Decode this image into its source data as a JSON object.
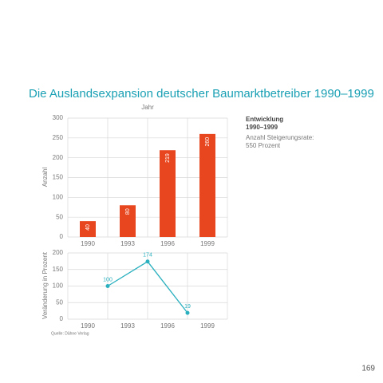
{
  "chart_data": [
    {
      "type": "bar",
      "title": "Die Auslandsexpansion deutscher Baumarktbetreiber 1990–1999",
      "x_label": "Jahr",
      "y_label": "Anzahl",
      "categories": [
        "1990",
        "1993",
        "1996",
        "1999"
      ],
      "values": [
        40,
        80,
        219,
        260
      ],
      "color": "#e8461e",
      "ylim": [
        0,
        300
      ],
      "yticks": [
        0,
        50,
        100,
        150,
        200,
        250,
        300
      ],
      "grid": true,
      "note_heading": [
        "Entwicklung",
        "1990–1999"
      ],
      "note_text": [
        "Anzahl Steigerungsrate:",
        "550 Prozent"
      ]
    },
    {
      "type": "line",
      "y_label": "Veränderung in Prozent",
      "x": [
        1991.5,
        1994.5,
        1997.5
      ],
      "xlim": [
        1988.5,
        2000.5
      ],
      "xticks": [
        1990,
        1993,
        1996,
        1999
      ],
      "series": [
        {
          "values": [
            100,
            174,
            19
          ],
          "color": "#2ab0bf"
        }
      ],
      "ylim": [
        0,
        200
      ],
      "yticks": [
        0,
        50,
        100,
        150,
        200
      ],
      "grid": true
    }
  ],
  "source": "Quelle: Dähne Verlag",
  "page_number": "169"
}
